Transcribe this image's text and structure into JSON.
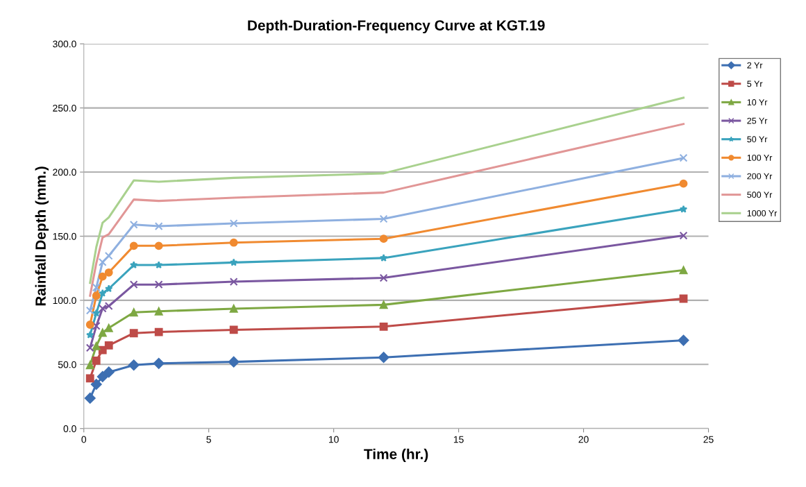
{
  "chart_data": {
    "type": "line",
    "title": "Depth-Duration-Frequency Curve at KGT.19",
    "xlabel": "Time (hr.)",
    "ylabel": "Rainfall Depth (mm.)",
    "x": [
      0.25,
      0.5,
      0.75,
      1,
      2,
      3,
      6,
      12,
      24
    ],
    "xlim": [
      0,
      25
    ],
    "xticks": [
      0,
      5,
      10,
      15,
      20,
      25
    ],
    "ylim": [
      0,
      300
    ],
    "yticks": [
      {
        "value": 0,
        "label": "0.0"
      },
      {
        "value": 50,
        "label": "50.0"
      },
      {
        "value": 100,
        "label": "100.0"
      },
      {
        "value": 150,
        "label": "150.0"
      },
      {
        "value": 200,
        "label": "200.0"
      },
      {
        "value": 250,
        "label": "250.0"
      },
      {
        "value": 300,
        "label": "300.0"
      }
    ],
    "grid": "y",
    "legend": "right",
    "series": [
      {
        "name": "2 Yr",
        "color": "#3d6fb2",
        "marker": "diamond",
        "values": [
          23.7,
          34.5,
          40.5,
          44,
          49.5,
          50.8,
          52,
          55.5,
          68.8
        ]
      },
      {
        "name": "5 Yr",
        "color": "#be4b48",
        "marker": "square",
        "values": [
          39.2,
          53,
          61.2,
          64.8,
          74.4,
          75.3,
          77,
          79.5,
          101.3
        ]
      },
      {
        "name": "10 Yr",
        "color": "#7ea843",
        "marker": "triangle",
        "values": [
          49.5,
          64.3,
          74.8,
          78.4,
          90.6,
          91.4,
          93.5,
          96.5,
          123.5
        ]
      },
      {
        "name": "25 Yr",
        "color": "#7a57a0",
        "marker": "cross",
        "values": [
          63,
          80,
          93.7,
          95.5,
          112.3,
          112.3,
          114.5,
          117.5,
          150.5
        ]
      },
      {
        "name": "50 Yr",
        "color": "#3aa3bd",
        "marker": "star",
        "values": [
          73,
          90,
          105.5,
          109,
          127.5,
          127.5,
          129.5,
          133,
          171
        ]
      },
      {
        "name": "100 Yr",
        "color": "#f08a30",
        "marker": "circle",
        "values": [
          81,
          103.6,
          118.5,
          121.7,
          142.5,
          142.5,
          145,
          148,
          191
        ]
      },
      {
        "name": "200 Yr",
        "color": "#8fb0e0",
        "marker": "cross",
        "values": [
          92,
          110,
          129.8,
          134.7,
          159,
          157.8,
          160,
          163.5,
          211
        ]
      },
      {
        "name": "500 Yr",
        "color": "#e19696",
        "marker": "none",
        "values": [
          103.6,
          129,
          149,
          151.5,
          178.6,
          177.5,
          180,
          184,
          237.5
        ]
      },
      {
        "name": "1000 Yr",
        "color": "#a9d18e",
        "marker": "none",
        "values": [
          113.6,
          141.5,
          160.5,
          164.7,
          193.5,
          192.5,
          195.5,
          199,
          258
        ]
      }
    ]
  }
}
